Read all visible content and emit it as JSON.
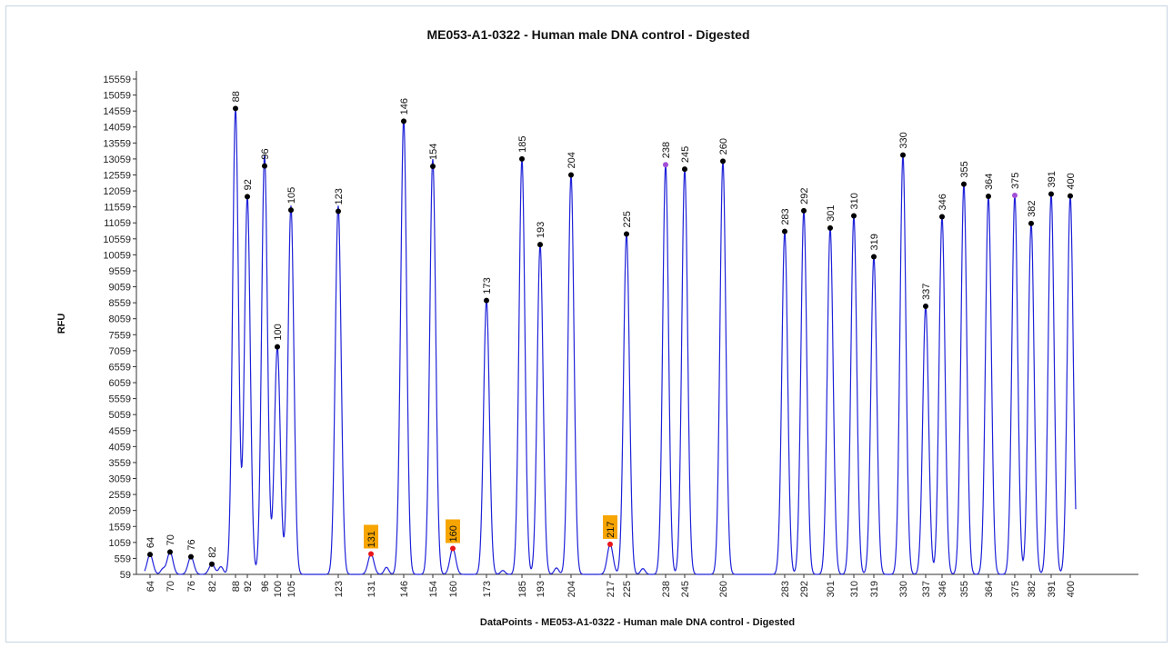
{
  "chart_data": {
    "type": "line",
    "title": "ME053-A1-0322 - Human male DNA control - Digested",
    "xlabel": "DataPoints - ME053-A1-0322 - Human male DNA control - Digested",
    "ylabel": "RFU",
    "grid": false,
    "ylim": [
      59,
      15800
    ],
    "yticks": [
      59,
      559,
      1059,
      1559,
      2059,
      2559,
      3059,
      3559,
      4059,
      4559,
      5059,
      5559,
      6059,
      6559,
      7059,
      7559,
      8059,
      8559,
      9059,
      9559,
      10059,
      10559,
      11059,
      11559,
      12059,
      12559,
      13059,
      13559,
      14059,
      14559,
      15059,
      15559
    ],
    "series": [
      {
        "peaks": [
          {
            "label": "64",
            "rfu": 680,
            "color": "#000000",
            "flagged": false
          },
          {
            "label": "70",
            "rfu": 760,
            "color": "#000000",
            "flagged": false
          },
          {
            "label": "76",
            "rfu": 610,
            "color": "#000000",
            "flagged": false
          },
          {
            "label": "82",
            "rfu": 380,
            "color": "#000000",
            "flagged": false
          },
          {
            "label": "88",
            "rfu": 14640,
            "color": "#000000",
            "flagged": false
          },
          {
            "label": "92",
            "rfu": 11880,
            "color": "#000000",
            "flagged": false
          },
          {
            "label": "96",
            "rfu": 12840,
            "color": "#000000",
            "flagged": false
          },
          {
            "label": "100",
            "rfu": 7180,
            "color": "#000000",
            "flagged": false
          },
          {
            "label": "105",
            "rfu": 11460,
            "color": "#000000",
            "flagged": false
          },
          {
            "label": "123",
            "rfu": 11420,
            "color": "#000000",
            "flagged": false
          },
          {
            "label": "131",
            "rfu": 700,
            "color": "#e8161b",
            "flagged": true
          },
          {
            "label": "146",
            "rfu": 14240,
            "color": "#000000",
            "flagged": false
          },
          {
            "label": "154",
            "rfu": 12830,
            "color": "#000000",
            "flagged": false
          },
          {
            "label": "160",
            "rfu": 870,
            "color": "#e8161b",
            "flagged": true
          },
          {
            "label": "173",
            "rfu": 8630,
            "color": "#000000",
            "flagged": false
          },
          {
            "label": "185",
            "rfu": 13060,
            "color": "#000000",
            "flagged": false
          },
          {
            "label": "193",
            "rfu": 10380,
            "color": "#000000",
            "flagged": false
          },
          {
            "label": "204",
            "rfu": 12560,
            "color": "#000000",
            "flagged": false
          },
          {
            "label": "217",
            "rfu": 1000,
            "color": "#e8161b",
            "flagged": true
          },
          {
            "label": "225",
            "rfu": 10710,
            "color": "#000000",
            "flagged": false
          },
          {
            "label": "238",
            "rfu": 12880,
            "color": "#a24fd6",
            "flagged": false
          },
          {
            "label": "245",
            "rfu": 12740,
            "color": "#000000",
            "flagged": false
          },
          {
            "label": "260",
            "rfu": 12990,
            "color": "#000000",
            "flagged": false
          },
          {
            "label": "283",
            "rfu": 10790,
            "color": "#000000",
            "flagged": false
          },
          {
            "label": "292",
            "rfu": 11440,
            "color": "#000000",
            "flagged": false
          },
          {
            "label": "301",
            "rfu": 10900,
            "color": "#000000",
            "flagged": false
          },
          {
            "label": "310",
            "rfu": 11280,
            "color": "#000000",
            "flagged": false
          },
          {
            "label": "319",
            "rfu": 10000,
            "color": "#000000",
            "flagged": false
          },
          {
            "label": "330",
            "rfu": 13180,
            "color": "#000000",
            "flagged": false
          },
          {
            "label": "337",
            "rfu": 8450,
            "color": "#000000",
            "flagged": false
          },
          {
            "label": "346",
            "rfu": 11250,
            "color": "#000000",
            "flagged": false
          },
          {
            "label": "355",
            "rfu": 12270,
            "color": "#000000",
            "flagged": false
          },
          {
            "label": "364",
            "rfu": 11890,
            "color": "#000000",
            "flagged": false
          },
          {
            "label": "375",
            "rfu": 11920,
            "color": "#a24fd6",
            "flagged": false
          },
          {
            "label": "382",
            "rfu": 11040,
            "color": "#000000",
            "flagged": false
          },
          {
            "label": "391",
            "rfu": 11960,
            "color": "#000000",
            "flagged": false
          },
          {
            "label": "400",
            "rfu": 11900,
            "color": "#000000",
            "flagged": false
          }
        ]
      }
    ],
    "colors": {
      "trace": "#1f22d8",
      "flag_box": "#f7a500",
      "peak_dot": "#000000"
    }
  }
}
